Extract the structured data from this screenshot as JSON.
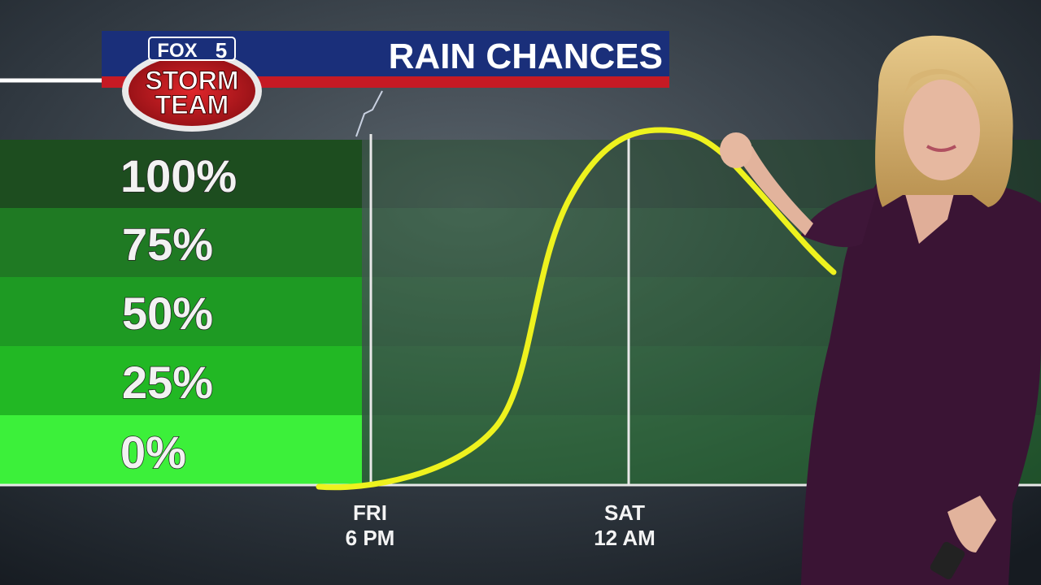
{
  "header": {
    "title": "RAIN CHANCES",
    "logo": {
      "brand": "FOX",
      "number": "5",
      "line1": "STORM",
      "line2": "TEAM"
    }
  },
  "scale": {
    "labels": [
      "100%",
      "75%",
      "50%",
      "25%",
      "0%"
    ]
  },
  "timeline": [
    {
      "day": "FRI",
      "time": "6 PM"
    },
    {
      "day": "SAT",
      "time": "12 AM"
    }
  ]
}
